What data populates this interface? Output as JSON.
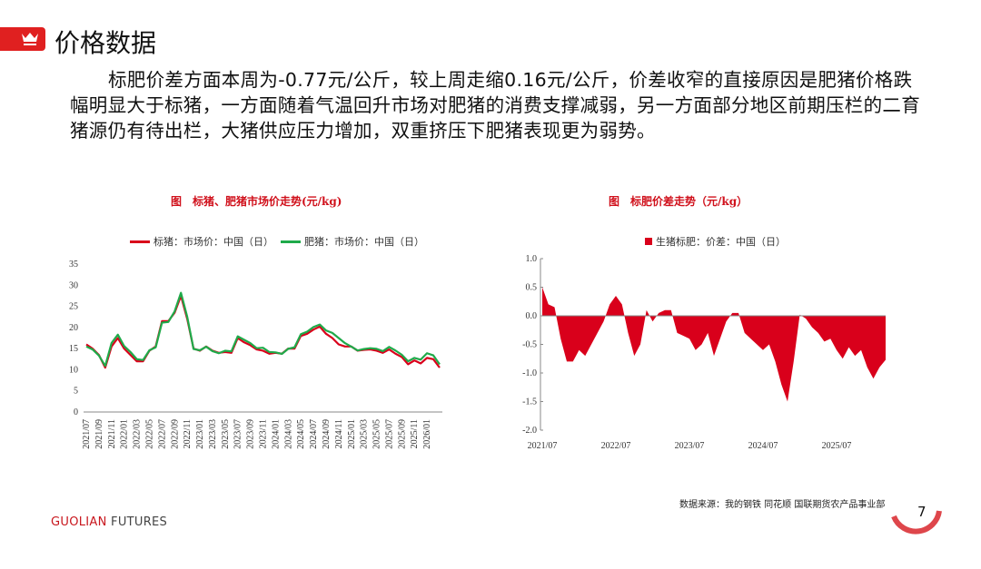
{
  "header": {
    "title": "价格数据"
  },
  "paragraph": "标肥价差方面本周为-0.77元/公斤，较上周走缩0.16元/公斤，价差收窄的直接原因是肥猪价格跌幅明显大于标猪，一方面随着气温回升市场对肥猪的消费支撑减弱，另一方面部分地区前期压栏的二育猪源仍有待出栏，大猪供应压力增加，双重挤压下肥猪表现更为弱势。",
  "colors": {
    "accent": "#e02020",
    "standard": "#d9001b",
    "fat": "#1faa4a"
  },
  "chart_data": [
    {
      "type": "line",
      "title": "图　标猪、肥猪市场价走势(元/kg)",
      "ylim": [
        0,
        35
      ],
      "yticks": [
        "0",
        "5",
        "10",
        "15",
        "20",
        "25",
        "30",
        "35"
      ],
      "xticks": [
        "2021/07",
        "2021/09",
        "2021/11",
        "2022/01",
        "2022/03",
        "2022/05",
        "2022/07",
        "2022/09",
        "2022/11",
        "2023/01",
        "2023/03",
        "2023/05",
        "2023/07",
        "2023/09",
        "2023/11",
        "2024/01",
        "2024/03",
        "2024/05",
        "2024/07",
        "2024/09",
        "2024/11",
        "2025/01",
        "2025/03",
        "2025/05",
        "2025/07",
        "2025/09",
        "2025/11",
        "2026/01"
      ],
      "x_start": "2021/07",
      "x_step": "month",
      "series": [
        {
          "name": "标猪：市场价：中国（日）",
          "values": [
            16,
            15,
            13.5,
            10.5,
            15.5,
            17.5,
            15,
            13.5,
            12,
            12,
            14.5,
            15.5,
            21.5,
            21.5,
            23.5,
            27.5,
            22,
            15,
            14.5,
            15.5,
            14.5,
            14,
            14.2,
            14,
            17.5,
            16.5,
            15.8,
            14.8,
            14.5,
            13.8,
            14,
            13.8,
            15,
            15,
            18,
            18.5,
            19.5,
            20.2,
            18.5,
            17.5,
            16,
            15.5,
            15.5,
            14.5,
            14.7,
            14.8,
            14.5,
            14,
            14.8,
            13.8,
            13,
            11.3,
            12.2,
            11.5,
            12.8,
            12.5,
            10.5
          ]
        },
        {
          "name": "肥猪：市场价：中国（日）",
          "values": [
            15.5,
            14.8,
            13.35,
            10.9,
            16.3,
            18.3,
            15.6,
            14.2,
            12.5,
            12.3,
            14.6,
            15.3,
            21.15,
            21.3,
            23.8,
            28.2,
            22.5,
            14.9,
            14.6,
            15.45,
            14.4,
            13.9,
            14.5,
            14.35,
            17.9,
            17.1,
            16.3,
            15.1,
            15.2,
            14.2,
            14.1,
            13.75,
            14.95,
            15.3,
            18.4,
            19,
            20.1,
            20.7,
            19.3,
            18.7,
            17.5,
            16.3,
            15.48,
            14.55,
            14.9,
            15.1,
            14.95,
            14.4,
            15.4,
            14.55,
            13.55,
            12,
            12.8,
            12.4,
            13.9,
            13.4,
            11.27
          ]
        }
      ]
    },
    {
      "type": "area",
      "title": "图　标肥价差走势（元/kg）",
      "ylim": [
        -2,
        1
      ],
      "yticks": [
        "1.0",
        "0.5",
        "0.0",
        "-0.5",
        "-1.0",
        "-1.5",
        "-2.0"
      ],
      "xticks": [
        "2021/07",
        "2022/07",
        "2023/07",
        "2024/07",
        "2025/07"
      ],
      "x_start": "2021/07",
      "x_step": "month",
      "series": [
        {
          "name": "生猪标肥：价差：中国（日）",
          "values": [
            0.5,
            0.2,
            0.15,
            -0.4,
            -0.8,
            -0.8,
            -0.6,
            -0.7,
            -0.5,
            -0.3,
            -0.1,
            0.2,
            0.35,
            0.2,
            -0.3,
            -0.7,
            -0.5,
            0.1,
            -0.1,
            0.05,
            0.1,
            0.1,
            -0.3,
            -0.35,
            -0.4,
            -0.6,
            -0.5,
            -0.3,
            -0.7,
            -0.4,
            -0.1,
            0.05,
            0.05,
            -0.3,
            -0.4,
            -0.5,
            -0.6,
            -0.5,
            -0.8,
            -1.2,
            -1.5,
            -0.8,
            0.02,
            -0.05,
            -0.2,
            -0.3,
            -0.45,
            -0.4,
            -0.6,
            -0.75,
            -0.55,
            -0.7,
            -0.6,
            -0.9,
            -1.1,
            -0.9,
            -0.77
          ]
        }
      ]
    }
  ],
  "footer": {
    "source": "数据来源：我的钢铁 同花顺 国联期货农产品事业部",
    "brand_a": "GUOLIAN",
    "brand_b": " FUTURES",
    "page": "7"
  }
}
